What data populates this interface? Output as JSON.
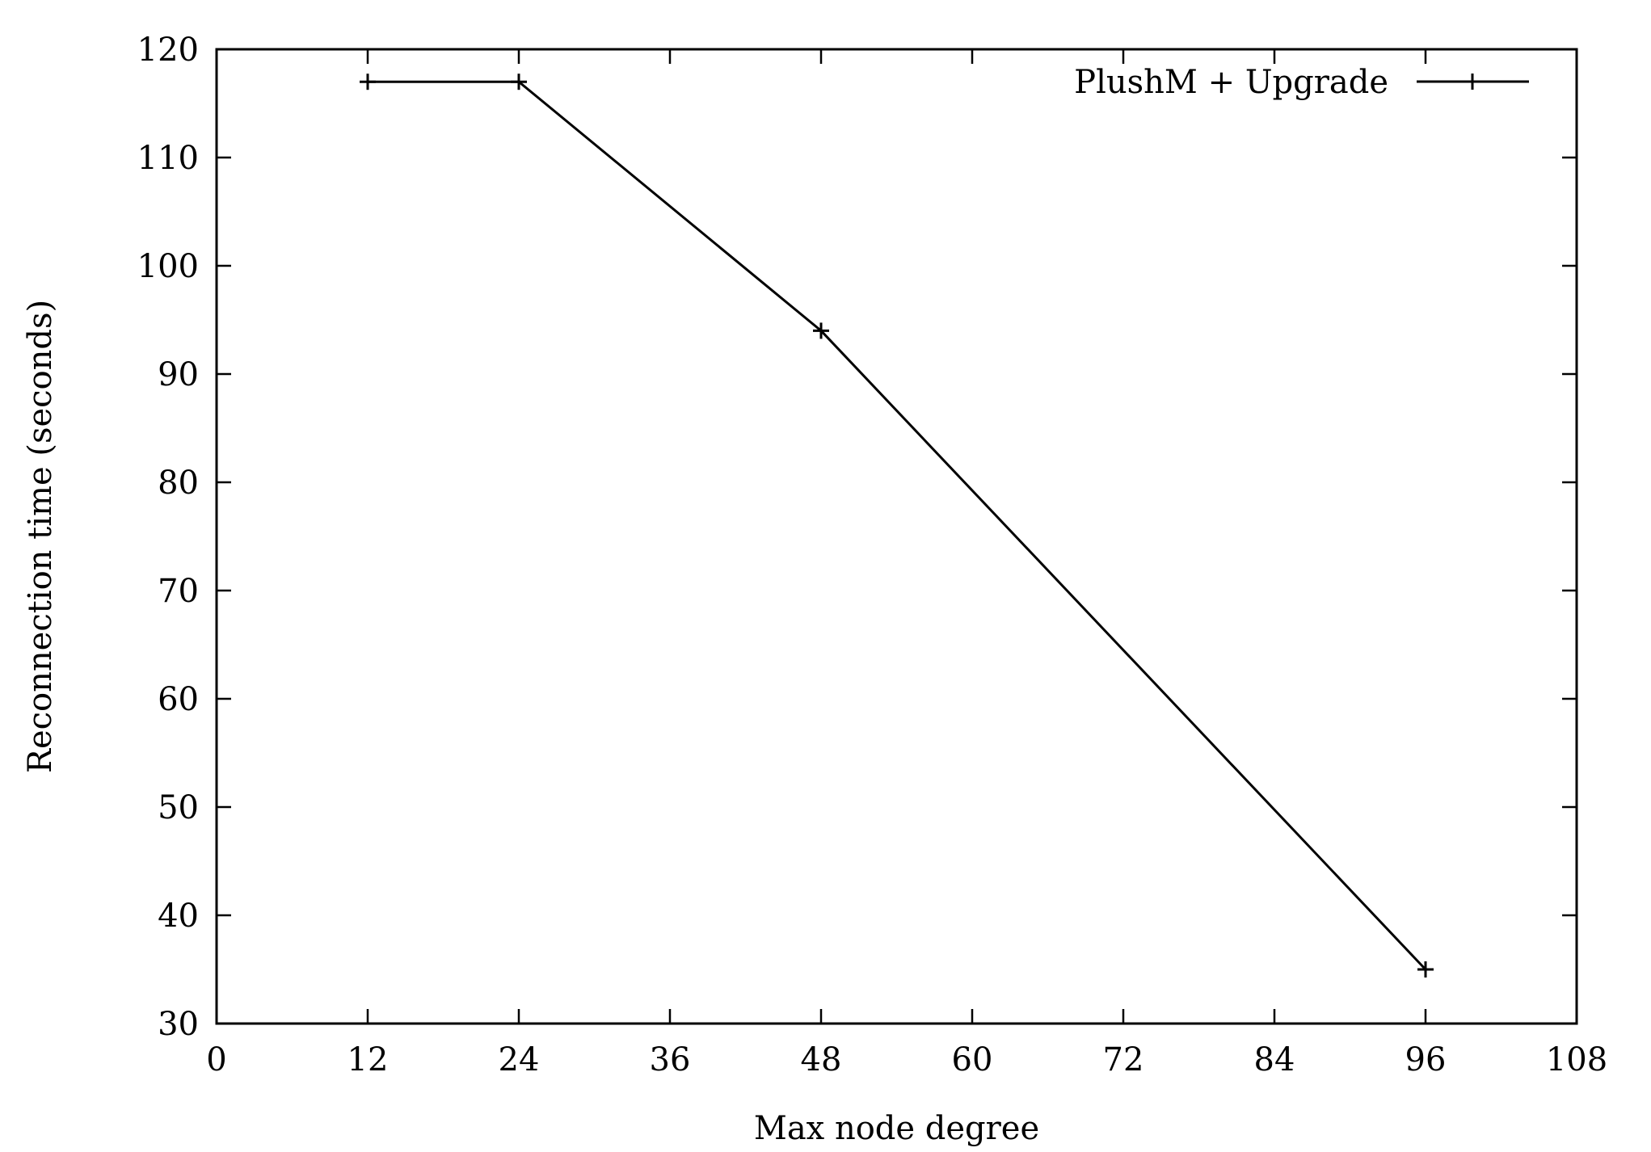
{
  "chart_data": {
    "type": "line",
    "title": "",
    "xlabel": "Max node degree",
    "ylabel": "Reconnection time (seconds)",
    "xlim": [
      0,
      108
    ],
    "ylim": [
      30,
      120
    ],
    "xticks": [
      0,
      12,
      24,
      36,
      48,
      60,
      72,
      84,
      96,
      108
    ],
    "yticks": [
      30,
      40,
      50,
      60,
      70,
      80,
      90,
      100,
      110,
      120
    ],
    "grid": false,
    "legend_position": "top-right",
    "series": [
      {
        "name": "PlushM + Upgrade",
        "color": "#000000",
        "marker": "plus",
        "x": [
          12,
          24,
          48,
          96
        ],
        "y": [
          117,
          117,
          94,
          35
        ]
      }
    ]
  }
}
